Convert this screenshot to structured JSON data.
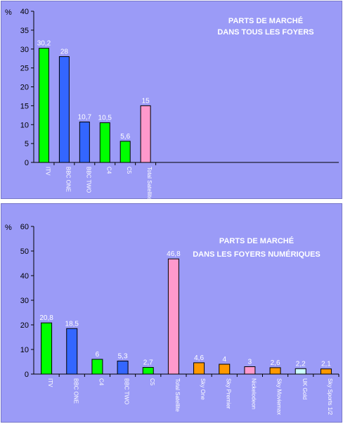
{
  "chart_data": [
    {
      "type": "bar",
      "title": "PARTS DE MARCHÉ",
      "subtitle": "DANS TOUS LES FOYERS",
      "ylabel": "%",
      "ylim": [
        0,
        40
      ],
      "yticks": [
        0,
        5,
        10,
        15,
        20,
        25,
        30,
        35,
        40
      ],
      "grid": false,
      "slots": 15,
      "categories": [
        "ITV",
        "BBC ONE",
        "BBC TWO",
        "C4",
        "C5",
        "Total Satellite"
      ],
      "values": [
        30.2,
        28,
        10.7,
        10.5,
        5.6,
        15
      ],
      "labels": [
        "30,2",
        "28",
        "10,7",
        "10,5",
        "5,6",
        "15"
      ],
      "colors": [
        "#00ff00",
        "#3366ff",
        "#3366ff",
        "#00ff00",
        "#00ff00",
        "#ff99cc"
      ]
    },
    {
      "type": "bar",
      "title": "PARTS DE MARCHÉ",
      "subtitle": "DANS LES FOYERS NUMÉRIQUES",
      "ylabel": "%",
      "ylim": [
        0,
        60
      ],
      "yticks": [
        0,
        10,
        20,
        30,
        40,
        50,
        60
      ],
      "grid": false,
      "slots": 12,
      "categories": [
        "ITV",
        "BBC ONE",
        "C4",
        "BBC TWO",
        "C5",
        "Total Satellite",
        "Sky One",
        "Sky Premier",
        "Nickelodeon",
        "Sky Moviemax",
        "UK Gold",
        "Sky Sports 1/2"
      ],
      "values": [
        20.8,
        18.5,
        6,
        5.3,
        2.7,
        46.8,
        4.6,
        4,
        3,
        2.6,
        2.2,
        2.1
      ],
      "labels": [
        "20,8",
        "18,5",
        "6",
        "5,3",
        "2,7",
        "46,8",
        "4,6",
        "4",
        "3",
        "2,6",
        "2,2",
        "2,1"
      ],
      "colors": [
        "#00ff00",
        "#3366ff",
        "#00ff00",
        "#3366ff",
        "#00ff00",
        "#ff99cc",
        "#ff9900",
        "#ff9900",
        "#ff99cc",
        "#ff9900",
        "#ccffff",
        "#ff9900"
      ]
    }
  ]
}
